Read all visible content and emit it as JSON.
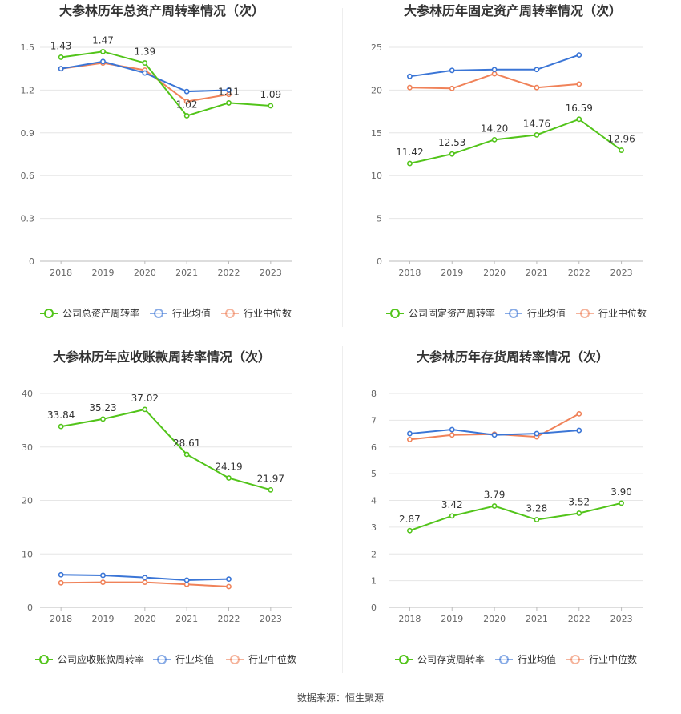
{
  "source_label": "数据来源：恒生聚源",
  "colors": {
    "company": "#52c41a",
    "avg": "#3a75d6",
    "median": "#f08259",
    "grid": "#e6e6e6",
    "axis": "#bbbbbb"
  },
  "chart_data": [
    {
      "type": "line",
      "title": "大参林历年总资产周转率情况（次）",
      "categories": [
        "2018",
        "2019",
        "2020",
        "2021",
        "2022",
        "2023"
      ],
      "ylim": [
        0,
        1.5
      ],
      "yticks": [
        "0",
        "0.3",
        "0.6",
        "0.9",
        "1.2",
        "1.5"
      ],
      "legend_placement": "bottom",
      "series": [
        {
          "name": "公司总资产周转率",
          "values": [
            1.43,
            1.47,
            1.39,
            1.02,
            1.11,
            1.09
          ],
          "labels": [
            "1.43",
            "1.47",
            "1.39",
            "1.02",
            "1.11",
            "1.09"
          ]
        },
        {
          "name": "行业均值",
          "values": [
            1.35,
            1.4,
            1.32,
            1.19,
            1.2,
            null
          ]
        },
        {
          "name": "行业中位数",
          "values": [
            1.35,
            1.39,
            1.34,
            1.12,
            1.17,
            null
          ]
        }
      ]
    },
    {
      "type": "line",
      "title": "大参林历年固定资产周转率情况（次）",
      "categories": [
        "2018",
        "2019",
        "2020",
        "2021",
        "2022",
        "2023"
      ],
      "ylim": [
        0,
        25
      ],
      "yticks": [
        "0",
        "5",
        "10",
        "15",
        "20",
        "25"
      ],
      "legend_placement": "bottom",
      "series": [
        {
          "name": "公司固定资产周转率",
          "values": [
            11.42,
            12.53,
            14.2,
            14.76,
            16.59,
            12.96
          ],
          "labels": [
            "11.42",
            "12.53",
            "14.20",
            "14.76",
            "16.59",
            "12.96"
          ]
        },
        {
          "name": "行业均值",
          "values": [
            21.6,
            22.3,
            22.4,
            22.4,
            24.1,
            null
          ]
        },
        {
          "name": "行业中位数",
          "values": [
            20.3,
            20.2,
            21.9,
            20.3,
            20.7,
            null
          ]
        }
      ]
    },
    {
      "type": "line",
      "title": "大参林历年应收账款周转率情况（次）",
      "categories": [
        "2018",
        "2019",
        "2020",
        "2021",
        "2022",
        "2023"
      ],
      "ylim": [
        0,
        40
      ],
      "yticks": [
        "0",
        "10",
        "20",
        "30",
        "40"
      ],
      "legend_placement": "bottom",
      "series": [
        {
          "name": "公司应收账款周转率",
          "values": [
            33.84,
            35.23,
            37.02,
            28.61,
            24.19,
            21.97
          ],
          "labels": [
            "33.84",
            "35.23",
            "37.02",
            "28.61",
            "24.19",
            "21.97"
          ]
        },
        {
          "name": "行业均值",
          "values": [
            6.1,
            6.0,
            5.6,
            5.1,
            5.3,
            null
          ]
        },
        {
          "name": "行业中位数",
          "values": [
            4.6,
            4.7,
            4.7,
            4.3,
            3.9,
            null
          ]
        }
      ]
    },
    {
      "type": "line",
      "title": "大参林历年存货周转率情况（次）",
      "categories": [
        "2018",
        "2019",
        "2020",
        "2021",
        "2022",
        "2023"
      ],
      "ylim": [
        0,
        8
      ],
      "yticks": [
        "0",
        "1",
        "2",
        "3",
        "4",
        "5",
        "6",
        "7",
        "8"
      ],
      "legend_placement": "bottom",
      "series": [
        {
          "name": "公司存货周转率",
          "values": [
            2.87,
            3.42,
            3.79,
            3.28,
            3.52,
            3.9
          ],
          "labels": [
            "2.87",
            "3.42",
            "3.79",
            "3.28",
            "3.52",
            "3.90"
          ]
        },
        {
          "name": "行业均值",
          "values": [
            6.5,
            6.65,
            6.45,
            6.5,
            6.62,
            null
          ]
        },
        {
          "name": "行业中位数",
          "values": [
            6.28,
            6.45,
            6.48,
            6.38,
            7.24,
            null
          ]
        }
      ]
    }
  ]
}
